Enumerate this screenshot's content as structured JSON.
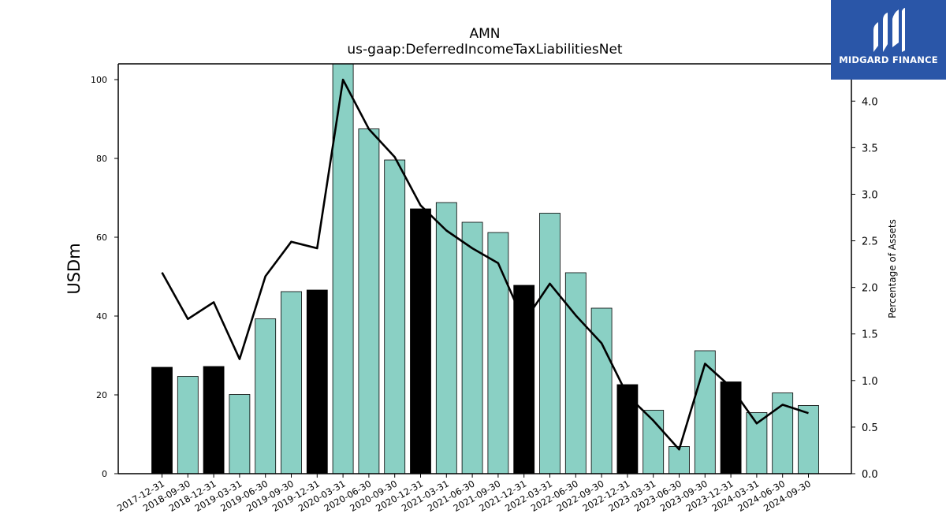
{
  "chart_data": {
    "type": "bar",
    "title": "AMN",
    "subtitle": "us-gaap:DeferredIncomeTaxLiabilitiesNet",
    "ylabel": "USDm",
    "y2label": "Percentage of Assets",
    "ylim": [
      0,
      104
    ],
    "y2lim": [
      0,
      4.4
    ],
    "yticks": [
      0,
      20,
      40,
      60,
      80,
      100
    ],
    "y2ticks": [
      "0.0",
      "0.5",
      "1.0",
      "1.5",
      "2.0",
      "2.5",
      "3.0",
      "3.5",
      "4.0"
    ],
    "categories": [
      "2017-12-31",
      "2018-09-30",
      "2018-12-31",
      "2019-03-31",
      "2019-06-30",
      "2019-09-30",
      "2019-12-31",
      "2020-03-31",
      "2020-06-30",
      "2020-09-30",
      "2020-12-31",
      "2021-03-31",
      "2021-06-30",
      "2021-09-30",
      "2021-12-31",
      "2022-03-31",
      "2022-06-30",
      "2022-09-30",
      "2022-12-31",
      "2023-03-31",
      "2023-06-30",
      "2023-09-30",
      "2023-12-31",
      "2024-03-31",
      "2024-06-30",
      "2024-09-30"
    ],
    "series": [
      {
        "kind": "bar",
        "values": [
          27.0,
          24.7,
          27.2,
          20.1,
          39.3,
          46.2,
          46.6,
          104.0,
          87.5,
          79.6,
          67.2,
          68.8,
          63.8,
          61.2,
          47.8,
          66.1,
          51.0,
          42.0,
          22.6,
          16.1,
          6.9,
          31.2,
          23.3,
          15.5,
          20.5,
          17.3
        ],
        "year_end": [
          true,
          false,
          true,
          false,
          false,
          false,
          true,
          false,
          false,
          false,
          true,
          false,
          false,
          false,
          true,
          false,
          false,
          false,
          true,
          false,
          false,
          false,
          true,
          false,
          false,
          false
        ]
      },
      {
        "kind": "line",
        "axis": "right",
        "values": [
          2.16,
          1.66,
          1.84,
          1.23,
          2.12,
          2.49,
          2.42,
          4.23,
          3.7,
          3.4,
          2.88,
          2.61,
          2.42,
          2.26,
          1.63,
          2.04,
          1.7,
          1.4,
          0.84,
          0.57,
          0.26,
          1.18,
          0.93,
          0.54,
          0.74,
          0.65
        ]
      }
    ],
    "colors": {
      "bar": "#8ad0c4",
      "bar_year_end": "#000000",
      "line": "#000000",
      "edge": "#000000"
    }
  },
  "logo": {
    "text": "MIDGARD FINANCE",
    "color": "#2a56a8"
  }
}
